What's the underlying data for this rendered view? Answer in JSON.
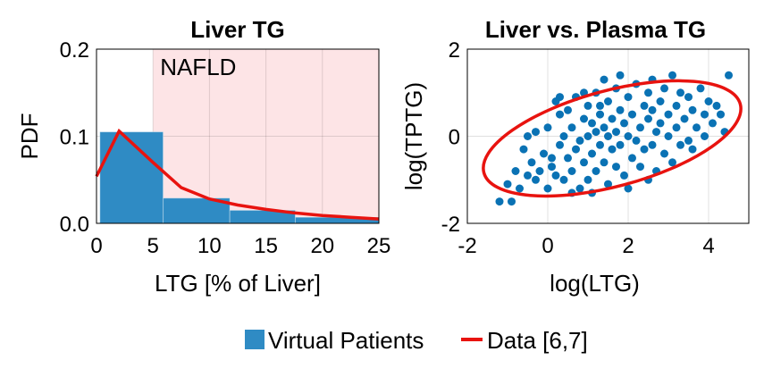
{
  "colors": {
    "bars": "#2f8bc4",
    "scatter": "#0a72b4",
    "line": "#e8130f",
    "shade": "#fde4e6"
  },
  "legend": {
    "virtual_patients": "Virtual Patients",
    "data": "Data [6,7]"
  },
  "chart_data": [
    {
      "type": "bar",
      "title": "Liver TG",
      "xlabel": "LTG [% of Liver]",
      "ylabel": "PDF",
      "xlim": [
        0,
        25
      ],
      "ylim": [
        0,
        0.2
      ],
      "xticks": [
        "0",
        "5",
        "10",
        "15",
        "20",
        "25"
      ],
      "yticks": [
        "0.0",
        "0.1",
        "0.2"
      ],
      "grid": true,
      "annotation": {
        "text": "NAFLD",
        "shaded_from_x": 5.0
      },
      "bins": [
        {
          "x0": 0.3,
          "x1": 5.9,
          "value": 0.105
        },
        {
          "x0": 5.9,
          "x1": 11.8,
          "value": 0.029
        },
        {
          "x0": 11.8,
          "x1": 17.6,
          "value": 0.015
        },
        {
          "x0": 17.6,
          "x1": 25.0,
          "value": 0.007
        }
      ],
      "series": [
        {
          "name": "Data [6,7]",
          "x": [
            0,
            2.0,
            5,
            7.5,
            10,
            12.5,
            15,
            17.5,
            20,
            22.5,
            25
          ],
          "y": [
            0.054,
            0.106,
            0.07,
            0.041,
            0.028,
            0.021,
            0.016,
            0.012,
            0.009,
            0.007,
            0.005
          ]
        }
      ]
    },
    {
      "type": "scatter",
      "title": "Liver vs. Plasma TG",
      "xlabel": "log(LTG)",
      "ylabel": "log(TPTG)",
      "xlim": [
        -2,
        5
      ],
      "ylim": [
        -2,
        2
      ],
      "xticks": [
        "-2",
        "0",
        "2",
        "4"
      ],
      "yticks": [
        "-2",
        "0",
        "2"
      ],
      "grid": true,
      "ellipse": {
        "cx": 1.6,
        "cy": -0.05,
        "rx": 3.3,
        "ry": 1.1,
        "angle_deg": 15
      },
      "points": [
        [
          -1.2,
          -1.5
        ],
        [
          -1.0,
          -1.1
        ],
        [
          -0.9,
          -1.5
        ],
        [
          -0.8,
          -0.8
        ],
        [
          -0.7,
          -1.2
        ],
        [
          -0.6,
          -0.3
        ],
        [
          -0.5,
          -0.9
        ],
        [
          -0.4,
          -0.6
        ],
        [
          -0.3,
          0.1
        ],
        [
          -0.2,
          -0.8
        ],
        [
          -0.1,
          -0.4
        ],
        [
          0.0,
          -1.2
        ],
        [
          0.0,
          0.2
        ],
        [
          0.1,
          -0.5
        ],
        [
          0.2,
          0.8
        ],
        [
          0.2,
          -0.9
        ],
        [
          0.3,
          -0.2
        ],
        [
          0.3,
          0.5
        ],
        [
          0.4,
          -1.0
        ],
        [
          0.4,
          0.0
        ],
        [
          0.5,
          -0.5
        ],
        [
          0.5,
          0.6
        ],
        [
          0.6,
          -0.8
        ],
        [
          0.6,
          0.2
        ],
        [
          0.7,
          -0.3
        ],
        [
          0.7,
          0.9
        ],
        [
          0.8,
          -1.2
        ],
        [
          0.8,
          -0.1
        ],
        [
          0.9,
          0.4
        ],
        [
          0.9,
          -0.6
        ],
        [
          1.0,
          0.0
        ],
        [
          1.0,
          -1.0
        ],
        [
          1.0,
          0.7
        ],
        [
          1.1,
          -0.4
        ],
        [
          1.1,
          0.3
        ],
        [
          1.2,
          -0.8
        ],
        [
          1.2,
          0.1
        ],
        [
          1.2,
          1.0
        ],
        [
          1.3,
          -0.2
        ],
        [
          1.3,
          0.5
        ],
        [
          1.4,
          -0.6
        ],
        [
          1.4,
          0.2
        ],
        [
          1.5,
          -1.1
        ],
        [
          1.5,
          0.0
        ],
        [
          1.5,
          0.8
        ],
        [
          1.6,
          -0.3
        ],
        [
          1.6,
          0.4
        ],
        [
          1.7,
          -0.7
        ],
        [
          1.7,
          0.1
        ],
        [
          1.7,
          1.1
        ],
        [
          1.8,
          -0.2
        ],
        [
          1.8,
          0.6
        ],
        [
          1.9,
          -0.9
        ],
        [
          1.9,
          0.3
        ],
        [
          2.0,
          0.0
        ],
        [
          2.0,
          0.9
        ],
        [
          2.1,
          -0.5
        ],
        [
          2.1,
          0.5
        ],
        [
          2.2,
          -0.1
        ],
        [
          2.2,
          1.2
        ],
        [
          2.3,
          0.2
        ],
        [
          2.3,
          -0.7
        ],
        [
          2.4,
          0.7
        ],
        [
          2.4,
          -0.3
        ],
        [
          2.5,
          0.4
        ],
        [
          2.5,
          1.0
        ],
        [
          2.6,
          -0.2
        ],
        [
          2.6,
          0.6
        ],
        [
          2.7,
          0.1
        ],
        [
          2.7,
          -0.8
        ],
        [
          2.8,
          0.8
        ],
        [
          2.8,
          0.3
        ],
        [
          2.9,
          -0.4
        ],
        [
          2.9,
          1.1
        ],
        [
          3.0,
          0.5
        ],
        [
          3.0,
          0.0
        ],
        [
          3.1,
          1.4
        ],
        [
          3.1,
          -0.6
        ],
        [
          3.2,
          0.7
        ],
        [
          3.2,
          0.2
        ],
        [
          3.3,
          -0.2
        ],
        [
          3.3,
          1.0
        ],
        [
          3.4,
          0.4
        ],
        [
          3.5,
          0.9
        ],
        [
          3.5,
          -0.1
        ],
        [
          3.6,
          0.6
        ],
        [
          3.7,
          0.2
        ],
        [
          3.8,
          1.1
        ],
        [
          3.9,
          0.5
        ],
        [
          4.0,
          0.8
        ],
        [
          4.1,
          0.3
        ],
        [
          4.2,
          0.7
        ],
        [
          4.3,
          0.5
        ],
        [
          4.5,
          1.4
        ],
        [
          4.4,
          0.1
        ],
        [
          1.4,
          1.3
        ],
        [
          0.9,
          1.0
        ],
        [
          0.3,
          0.9
        ],
        [
          2.5,
          -1.0
        ],
        [
          1.8,
          1.4
        ],
        [
          0.6,
          -1.3
        ],
        [
          -0.5,
          0.0
        ],
        [
          3.6,
          -0.3
        ],
        [
          2.0,
          -1.2
        ],
        [
          -0.3,
          -1.0
        ],
        [
          1.3,
          0.7
        ],
        [
          2.6,
          1.3
        ],
        [
          3.9,
          0.0
        ],
        [
          0.1,
          -0.7
        ],
        [
          1.1,
          -1.3
        ]
      ]
    }
  ]
}
